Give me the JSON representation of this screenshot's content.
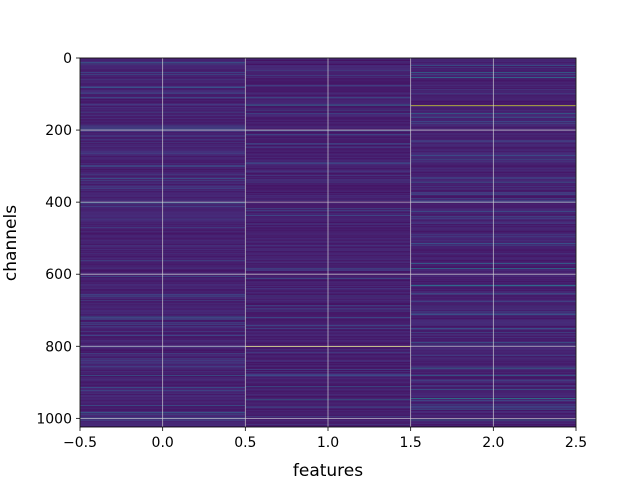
{
  "chart_data": {
    "type": "heatmap",
    "title": "",
    "xlabel": "features",
    "ylabel": "channels",
    "x_ticks": [
      "−0.5",
      "0.0",
      "0.5",
      "1.0",
      "1.5",
      "2.0",
      "2.5"
    ],
    "x_tick_values": [
      -0.5,
      0.0,
      0.5,
      1.0,
      1.5,
      2.0,
      2.5
    ],
    "y_ticks": [
      "0",
      "200",
      "400",
      "600",
      "800",
      "1000"
    ],
    "y_tick_values": [
      0,
      200,
      400,
      600,
      800,
      1000
    ],
    "xlim": [
      -0.5,
      2.5
    ],
    "ylim": [
      1024,
      0
    ],
    "n_columns": 3,
    "n_rows": 1024,
    "colormap": "viridis",
    "grid": true,
    "column_base_level": [
      0.06,
      0.05,
      0.06
    ],
    "column_bright_rows": [
      [
        [
          12,
          0.3
        ],
        [
          60,
          0.18
        ],
        [
          80,
          0.15
        ],
        [
          150,
          0.2
        ],
        [
          260,
          0.16
        ],
        [
          340,
          0.2
        ],
        [
          410,
          0.17
        ],
        [
          470,
          0.2
        ],
        [
          520,
          0.16
        ],
        [
          600,
          0.18
        ],
        [
          660,
          0.16
        ],
        [
          720,
          0.18
        ],
        [
          800,
          0.2
        ],
        [
          870,
          0.16
        ],
        [
          930,
          0.15
        ],
        [
          985,
          0.35
        ],
        [
          1000,
          0.2
        ]
      ],
      [
        [
          130,
          0.4
        ],
        [
          155,
          0.25
        ],
        [
          290,
          0.22
        ],
        [
          345,
          0.2
        ],
        [
          520,
          0.16
        ],
        [
          640,
          0.17
        ],
        [
          720,
          0.25
        ],
        [
          800,
          0.95
        ],
        [
          865,
          0.22
        ],
        [
          880,
          0.25
        ],
        [
          948,
          0.35
        ],
        [
          995,
          0.2
        ]
      ],
      [
        [
          0,
          0.45
        ],
        [
          20,
          0.3
        ],
        [
          40,
          0.35
        ],
        [
          55,
          0.4
        ],
        [
          133,
          0.95
        ],
        [
          155,
          0.35
        ],
        [
          165,
          0.3
        ],
        [
          230,
          0.25
        ],
        [
          280,
          0.28
        ],
        [
          345,
          0.3
        ],
        [
          375,
          0.25
        ],
        [
          400,
          0.3
        ],
        [
          440,
          0.22
        ],
        [
          490,
          0.2
        ],
        [
          570,
          0.35
        ],
        [
          585,
          0.4
        ],
        [
          630,
          0.4
        ],
        [
          655,
          0.3
        ],
        [
          710,
          0.3
        ],
        [
          750,
          0.3
        ],
        [
          790,
          0.35
        ],
        [
          860,
          0.4
        ],
        [
          880,
          0.35
        ],
        [
          920,
          0.3
        ],
        [
          945,
          0.45
        ],
        [
          975,
          0.3
        ],
        [
          1005,
          0.4
        ]
      ]
    ]
  }
}
